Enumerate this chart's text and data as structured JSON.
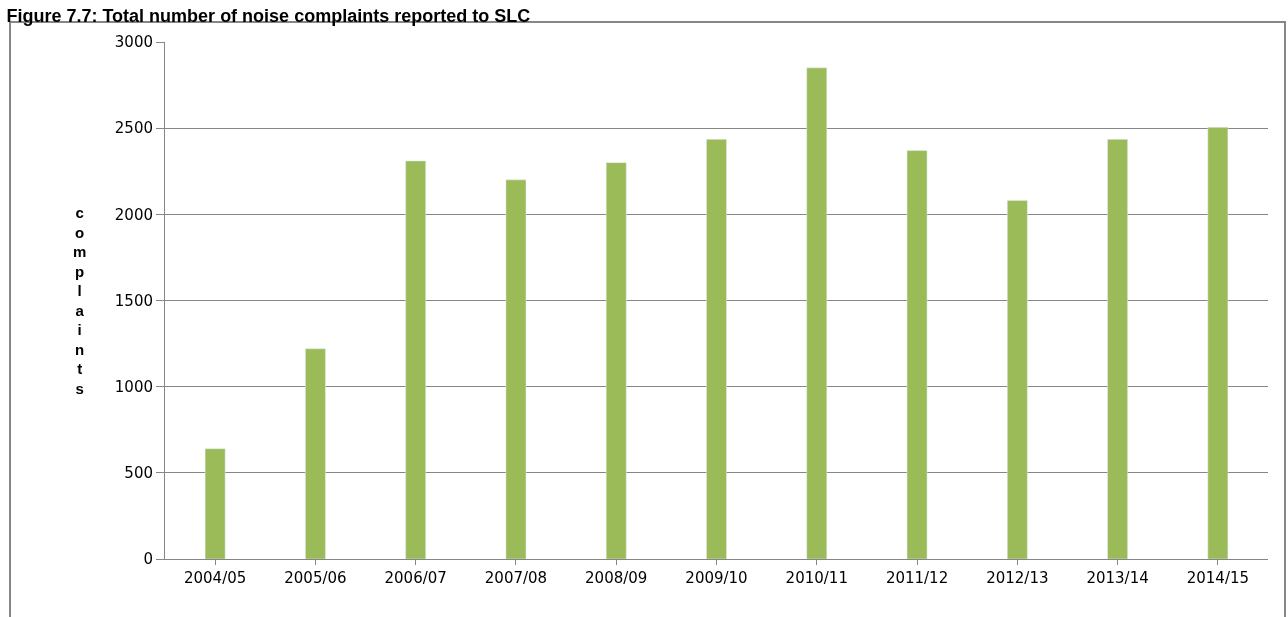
{
  "chart_data": {
    "type": "bar",
    "title": "Figure 7.7: Total number of noise complaints reported to SLC",
    "ylabel": "complaints",
    "categories": [
      "2004/05",
      "2005/06",
      "2006/07",
      "2007/08",
      "2008/09",
      "2009/10",
      "2010/11",
      "2011/12",
      "2012/13",
      "2013/14",
      "2014/15"
    ],
    "values": [
      640,
      1220,
      2310,
      2200,
      2300,
      2435,
      2850,
      2370,
      2080,
      2435,
      2505
    ],
    "color": "#9bbb59",
    "ylim": [
      0,
      3000
    ],
    "yticks": [
      0,
      500,
      1000,
      1500,
      2000,
      2500,
      3000
    ],
    "grid": "y"
  }
}
